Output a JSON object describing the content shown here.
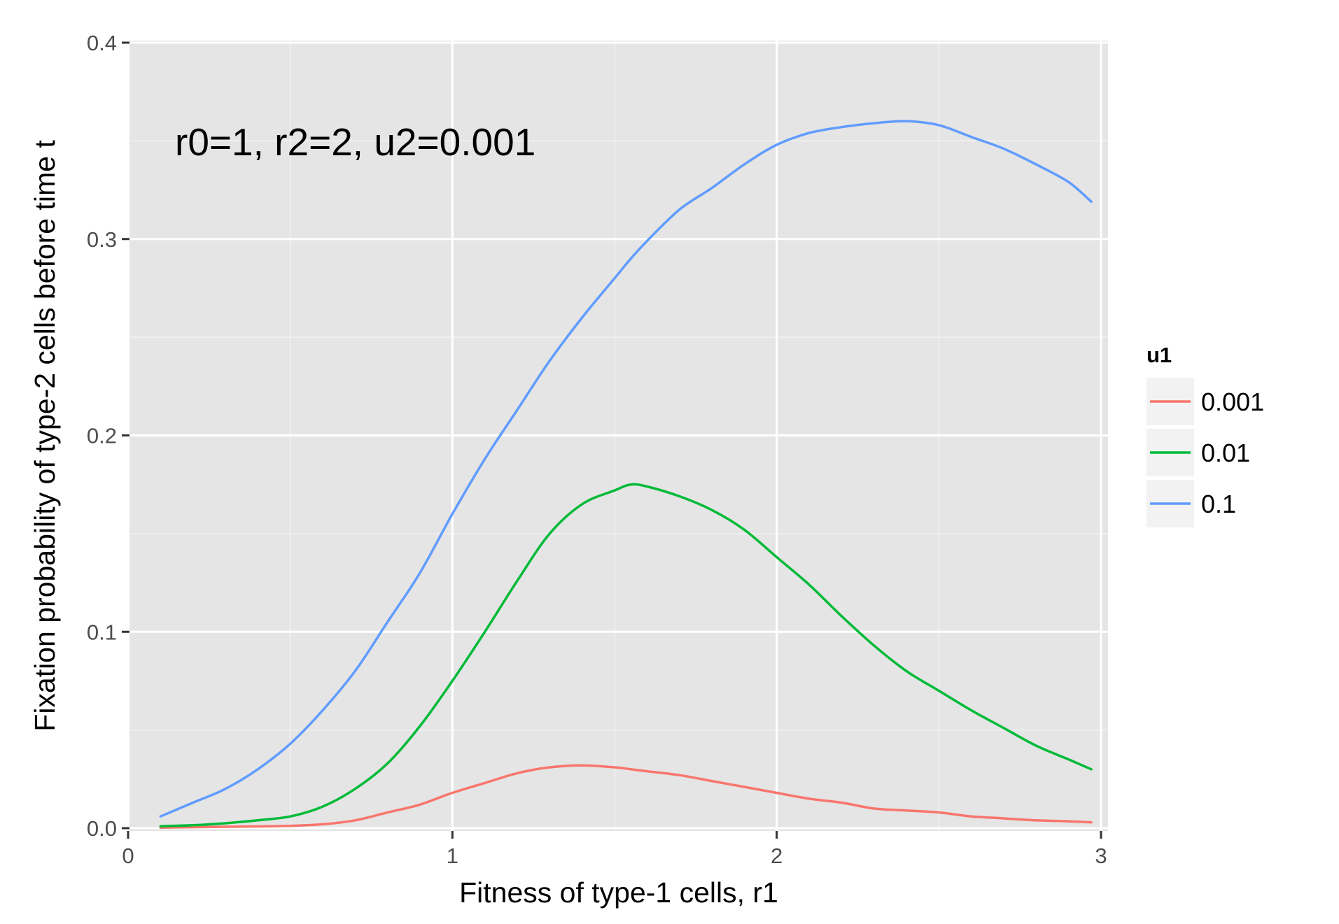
{
  "chart_data": {
    "type": "line",
    "xlabel": "Fitness of type-1 cells, r1",
    "ylabel": "Fixation probability of type-2 cells before time t",
    "annotation": "r0=1, r2=2, u2=0.001",
    "xlim": [
      0,
      3
    ],
    "ylim": [
      0,
      0.4
    ],
    "x_ticks": [
      "0",
      "1",
      "2",
      "3"
    ],
    "y_ticks": [
      "0.0",
      "0.1",
      "0.2",
      "0.3",
      "0.4"
    ],
    "grid": true,
    "legend": {
      "title": "u1",
      "placement": "right"
    },
    "x": [
      0.1,
      0.2,
      0.3,
      0.4,
      0.5,
      0.6,
      0.7,
      0.8,
      0.9,
      1.0,
      1.1,
      1.2,
      1.3,
      1.4,
      1.5,
      1.55,
      1.6,
      1.7,
      1.8,
      1.9,
      2.0,
      2.1,
      2.2,
      2.3,
      2.4,
      2.5,
      2.6,
      2.7,
      2.8,
      2.9,
      2.97
    ],
    "series": [
      {
        "name": "0.001",
        "color": "#F8766D",
        "values": [
          0.0003,
          0.0005,
          0.0007,
          0.0009,
          0.0012,
          0.002,
          0.004,
          0.008,
          0.012,
          0.018,
          0.023,
          0.028,
          0.031,
          0.032,
          0.031,
          0.03,
          0.029,
          0.027,
          0.024,
          0.021,
          0.018,
          0.015,
          0.013,
          0.01,
          0.009,
          0.008,
          0.006,
          0.005,
          0.004,
          0.0035,
          0.003
        ]
      },
      {
        "name": "0.01",
        "color": "#00BA38",
        "values": [
          0.001,
          0.0015,
          0.0025,
          0.004,
          0.006,
          0.011,
          0.02,
          0.033,
          0.052,
          0.075,
          0.1,
          0.126,
          0.15,
          0.165,
          0.172,
          0.175,
          0.174,
          0.169,
          0.162,
          0.152,
          0.138,
          0.124,
          0.108,
          0.093,
          0.08,
          0.07,
          0.06,
          0.051,
          0.042,
          0.035,
          0.03
        ]
      },
      {
        "name": "0.1",
        "color": "#619CFF",
        "values": [
          0.006,
          0.013,
          0.02,
          0.03,
          0.043,
          0.06,
          0.08,
          0.105,
          0.13,
          0.16,
          0.188,
          0.213,
          0.238,
          0.26,
          0.28,
          0.29,
          0.299,
          0.315,
          0.326,
          0.338,
          0.348,
          0.354,
          0.357,
          0.359,
          0.36,
          0.358,
          0.352,
          0.346,
          0.338,
          0.329,
          0.319
        ]
      }
    ]
  }
}
